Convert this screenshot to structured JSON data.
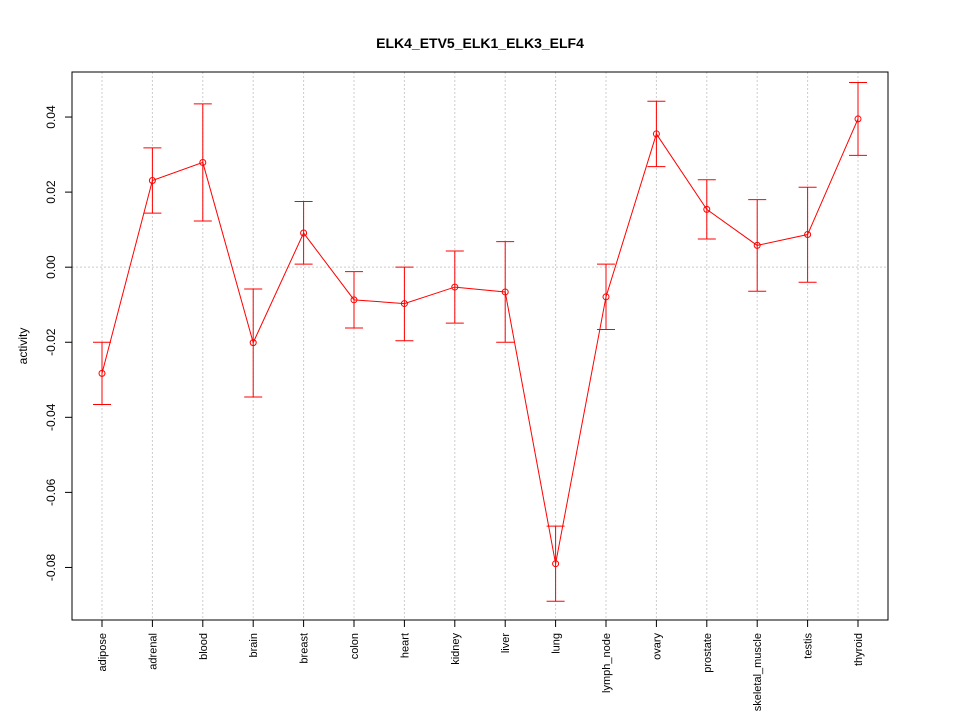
{
  "chart_data": {
    "type": "line",
    "title": "ELK4_ETV5_ELK1_ELK3_ELF4",
    "xlabel": "",
    "ylabel": "activity",
    "ylim": [
      -0.094,
      0.052
    ],
    "yticks": [
      -0.08,
      -0.06,
      -0.04,
      -0.02,
      0.0,
      0.02,
      0.04
    ],
    "ytick_labels": [
      "-0.08",
      "-0.06",
      "-0.04",
      "-0.02",
      "0.00",
      "0.02",
      "0.04"
    ],
    "grid": true,
    "color": "#ff0000",
    "categories": [
      "adipose",
      "adrenal",
      "blood",
      "brain",
      "breast",
      "colon",
      "heart",
      "kidney",
      "liver",
      "lung",
      "lymph_node",
      "ovary",
      "prostate",
      "skeletal_muscle",
      "testis",
      "thyroid"
    ],
    "values": [
      -0.0283,
      0.0231,
      0.0279,
      -0.0201,
      0.0091,
      -0.0087,
      -0.0097,
      -0.0053,
      -0.0066,
      -0.079,
      -0.0079,
      0.0355,
      0.0154,
      0.0058,
      0.0087,
      0.0395
    ],
    "err_upper": [
      -0.02,
      0.0318,
      0.0435,
      -0.0058,
      0.0175,
      -0.0012,
      0.0,
      0.0043,
      0.0068,
      -0.069,
      0.0008,
      0.0442,
      0.0233,
      0.018,
      0.0213,
      0.0492
    ],
    "err_lower": [
      -0.0366,
      0.0144,
      0.0123,
      -0.0346,
      0.0008,
      -0.0162,
      -0.0196,
      -0.0149,
      -0.02,
      -0.089,
      -0.0166,
      0.0268,
      0.0075,
      -0.0064,
      -0.004,
      0.0298
    ]
  }
}
